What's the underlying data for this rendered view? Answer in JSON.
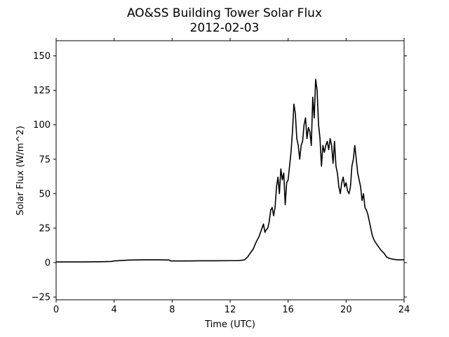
{
  "chart_data": {
    "type": "line",
    "title": "AO&SS Building Tower Solar Flux",
    "subtitle": "2012-02-03",
    "xlabel": "Time (UTC)",
    "ylabel": "Solar Flux (W/m^2)",
    "xlim": [
      0,
      24
    ],
    "ylim": [
      -27,
      161
    ],
    "xticks": [
      0,
      4,
      8,
      12,
      16,
      20,
      24
    ],
    "xtick_labels": [
      "0",
      "4",
      "8",
      "12",
      "16",
      "20",
      "24"
    ],
    "yticks": [
      -25,
      0,
      25,
      50,
      75,
      100,
      125,
      150
    ],
    "ytick_labels": [
      "−25",
      "0",
      "25",
      "50",
      "75",
      "100",
      "125",
      "150"
    ],
    "grid": false,
    "line_color": "#000000",
    "series": [
      {
        "x": [
          0,
          1,
          2,
          3,
          3.8,
          4,
          4.5,
          5,
          6,
          7,
          7.8,
          7.9,
          8,
          9,
          10,
          11,
          12,
          12.6,
          13,
          13.2,
          13.4,
          13.6,
          13.8,
          14,
          14.1,
          14.2,
          14.3,
          14.4,
          14.5,
          14.6,
          14.7,
          14.8,
          14.9,
          15,
          15.1,
          15.2,
          15.3,
          15.4,
          15.5,
          15.6,
          15.7,
          15.8,
          15.9,
          16,
          16.1,
          16.2,
          16.3,
          16.4,
          16.5,
          16.6,
          16.7,
          16.8,
          16.9,
          17,
          17.1,
          17.2,
          17.3,
          17.4,
          17.5,
          17.6,
          17.7,
          17.8,
          17.9,
          18,
          18.1,
          18.2,
          18.3,
          18.4,
          18.5,
          18.6,
          18.7,
          18.8,
          18.9,
          19,
          19.1,
          19.2,
          19.3,
          19.4,
          19.5,
          19.6,
          19.7,
          19.8,
          19.9,
          20,
          20.1,
          20.2,
          20.3,
          20.4,
          20.5,
          20.6,
          20.7,
          20.8,
          20.9,
          21,
          21.1,
          21.2,
          21.3,
          21.4,
          21.5,
          21.6,
          21.7,
          21.8,
          21.9,
          22,
          22.2,
          22.4,
          22.6,
          22.8,
          23,
          23.2,
          23.4,
          23.6,
          23.8,
          24
        ],
        "values": [
          0.5,
          0.5,
          0.5,
          0.6,
          0.8,
          1.2,
          1.5,
          1.8,
          2.0,
          2.0,
          1.9,
          1.2,
          1.2,
          1.2,
          1.3,
          1.3,
          1.4,
          1.4,
          2,
          4,
          7,
          10,
          15,
          19,
          22,
          25,
          28,
          22,
          24,
          25,
          30,
          38,
          40,
          34,
          40,
          55,
          62,
          50,
          68,
          60,
          65,
          42,
          58,
          60,
          70,
          80,
          95,
          115,
          108,
          90,
          85,
          75,
          85,
          88,
          100,
          105,
          90,
          98,
          95,
          85,
          120,
          105,
          133,
          125,
          100,
          90,
          70,
          85,
          80,
          85,
          88,
          82,
          90,
          85,
          72,
          88,
          70,
          65,
          55,
          50,
          58,
          62,
          55,
          58,
          52,
          50,
          55,
          70,
          75,
          85,
          75,
          65,
          60,
          55,
          45,
          50,
          40,
          38,
          35,
          30,
          25,
          20,
          17,
          15,
          12,
          9,
          7,
          4,
          3,
          2.5,
          2.2,
          2.0,
          2.0,
          2.0
        ]
      }
    ]
  }
}
